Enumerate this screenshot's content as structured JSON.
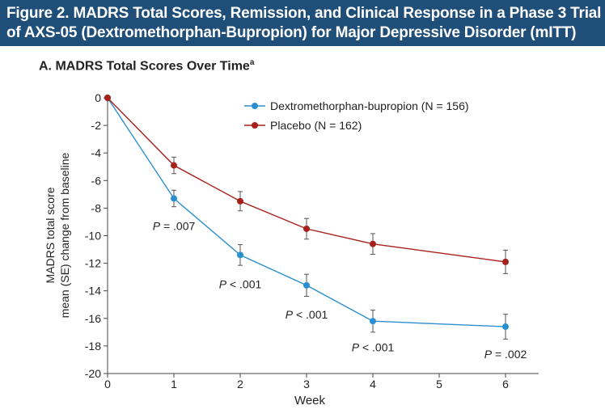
{
  "figure": {
    "title_line1": "Figure 2. MADRS Total Scores, Remission, and Clinical Response in a Phase 3 Trial",
    "title_line2": "of AXS-05 (Dextromethorphan-Bupropion) for Major Depressive Disorder (mITT)",
    "banner_color": "#1f4e79"
  },
  "chart_data": {
    "type": "line",
    "title": "A. MADRS Total Scores Over Time",
    "title_superscript": "a",
    "xlabel": "Week",
    "ylabel_line1": "MADRS total score",
    "ylabel_line2": "mean (SE) change from baseline",
    "x_ticks": [
      "0",
      "1",
      "2",
      "3",
      "4",
      "5",
      "6"
    ],
    "y_ticks": [
      "0",
      "-2",
      "-4",
      "-6",
      "-8",
      "-10",
      "-12",
      "-14",
      "-16",
      "-18",
      "-20"
    ],
    "ylim": [
      -20,
      0
    ],
    "xlim": [
      0,
      6.5
    ],
    "legend_position": "top-right",
    "series": [
      {
        "name": "Dextromethorphan-bupropion (N = 156)",
        "color": "#2a8fd0",
        "x": [
          0,
          1,
          2,
          3,
          4,
          6
        ],
        "y": [
          0,
          -7.3,
          -11.4,
          -13.6,
          -16.2,
          -16.6
        ],
        "error": [
          0,
          0.6,
          0.75,
          0.8,
          0.8,
          0.9
        ]
      },
      {
        "name": "Placebo (N = 162)",
        "color": "#a8201a",
        "x": [
          0,
          1,
          2,
          3,
          4,
          6
        ],
        "y": [
          0,
          -4.9,
          -7.5,
          -9.5,
          -10.6,
          -11.9
        ],
        "error": [
          0,
          0.6,
          0.7,
          0.75,
          0.75,
          0.85
        ]
      }
    ],
    "annotations": [
      {
        "prefix": "P",
        "text": " = .007",
        "x": 1,
        "y": -9.6
      },
      {
        "prefix": "P",
        "text": " < .001",
        "x": 2,
        "y": -13.8
      },
      {
        "prefix": "P",
        "text": " < .001",
        "x": 3,
        "y": -16.0
      },
      {
        "prefix": "P",
        "text": " < .001",
        "x": 4,
        "y": -18.4
      },
      {
        "prefix": "P",
        "text": " = .002",
        "x": 6,
        "y": -18.9
      }
    ]
  }
}
